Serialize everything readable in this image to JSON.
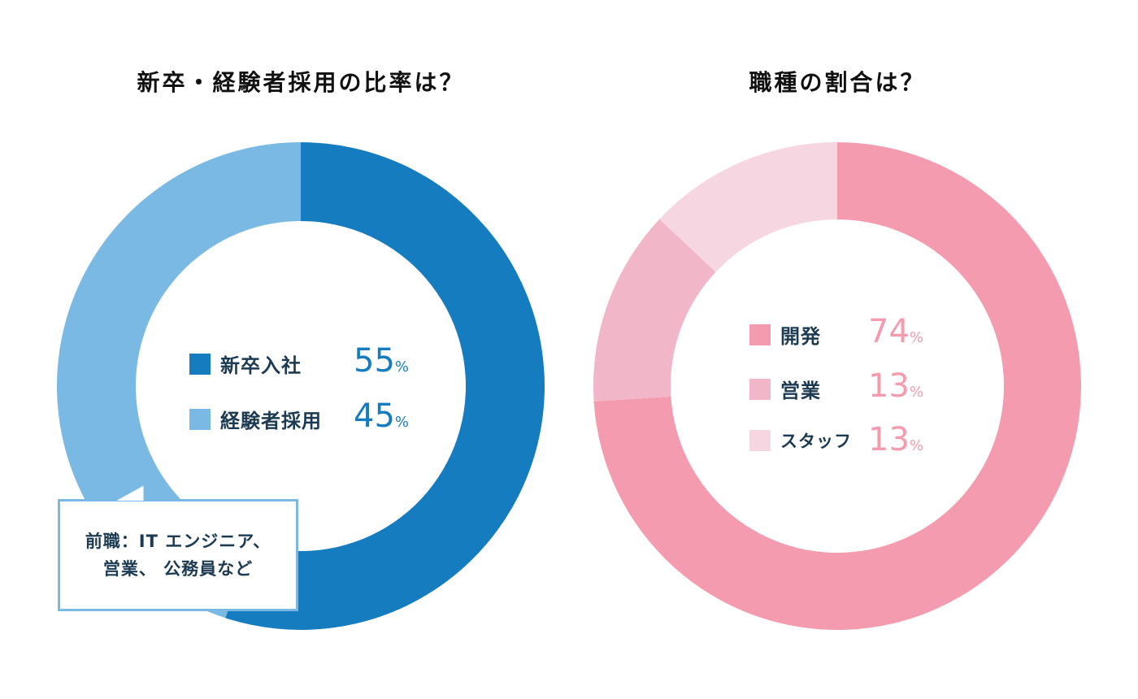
{
  "chart_data": [
    {
      "type": "pie",
      "variant": "donut",
      "title": "新卒・経験者採用の比率は？",
      "categories": [
        "新卒入社",
        "経験者採用"
      ],
      "values": [
        55,
        45
      ],
      "value_labels": [
        "55",
        "45"
      ],
      "unit": "%",
      "colors": [
        "#157cc0",
        "#7ab9e3"
      ],
      "legend_position": "center",
      "annotation": {
        "lines": [
          "前職：IT エンジニア、",
          "営業、 公務員など"
        ],
        "border_color": "#7ab9e3"
      }
    },
    {
      "type": "pie",
      "variant": "donut",
      "title": "職種の割合は？",
      "categories": [
        "開発",
        "営業",
        "スタッフ"
      ],
      "values": [
        74,
        13,
        13
      ],
      "value_labels": [
        "74",
        "13",
        "13"
      ],
      "unit": "%",
      "colors": [
        "#f49bb0",
        "#f2b6c9",
        "#f6d6e1"
      ],
      "legend_position": "center"
    }
  ],
  "theme": {
    "label_color": "#1c3a52",
    "left_value_color": "#157cc0",
    "right_value_color": "#f49bb0"
  }
}
